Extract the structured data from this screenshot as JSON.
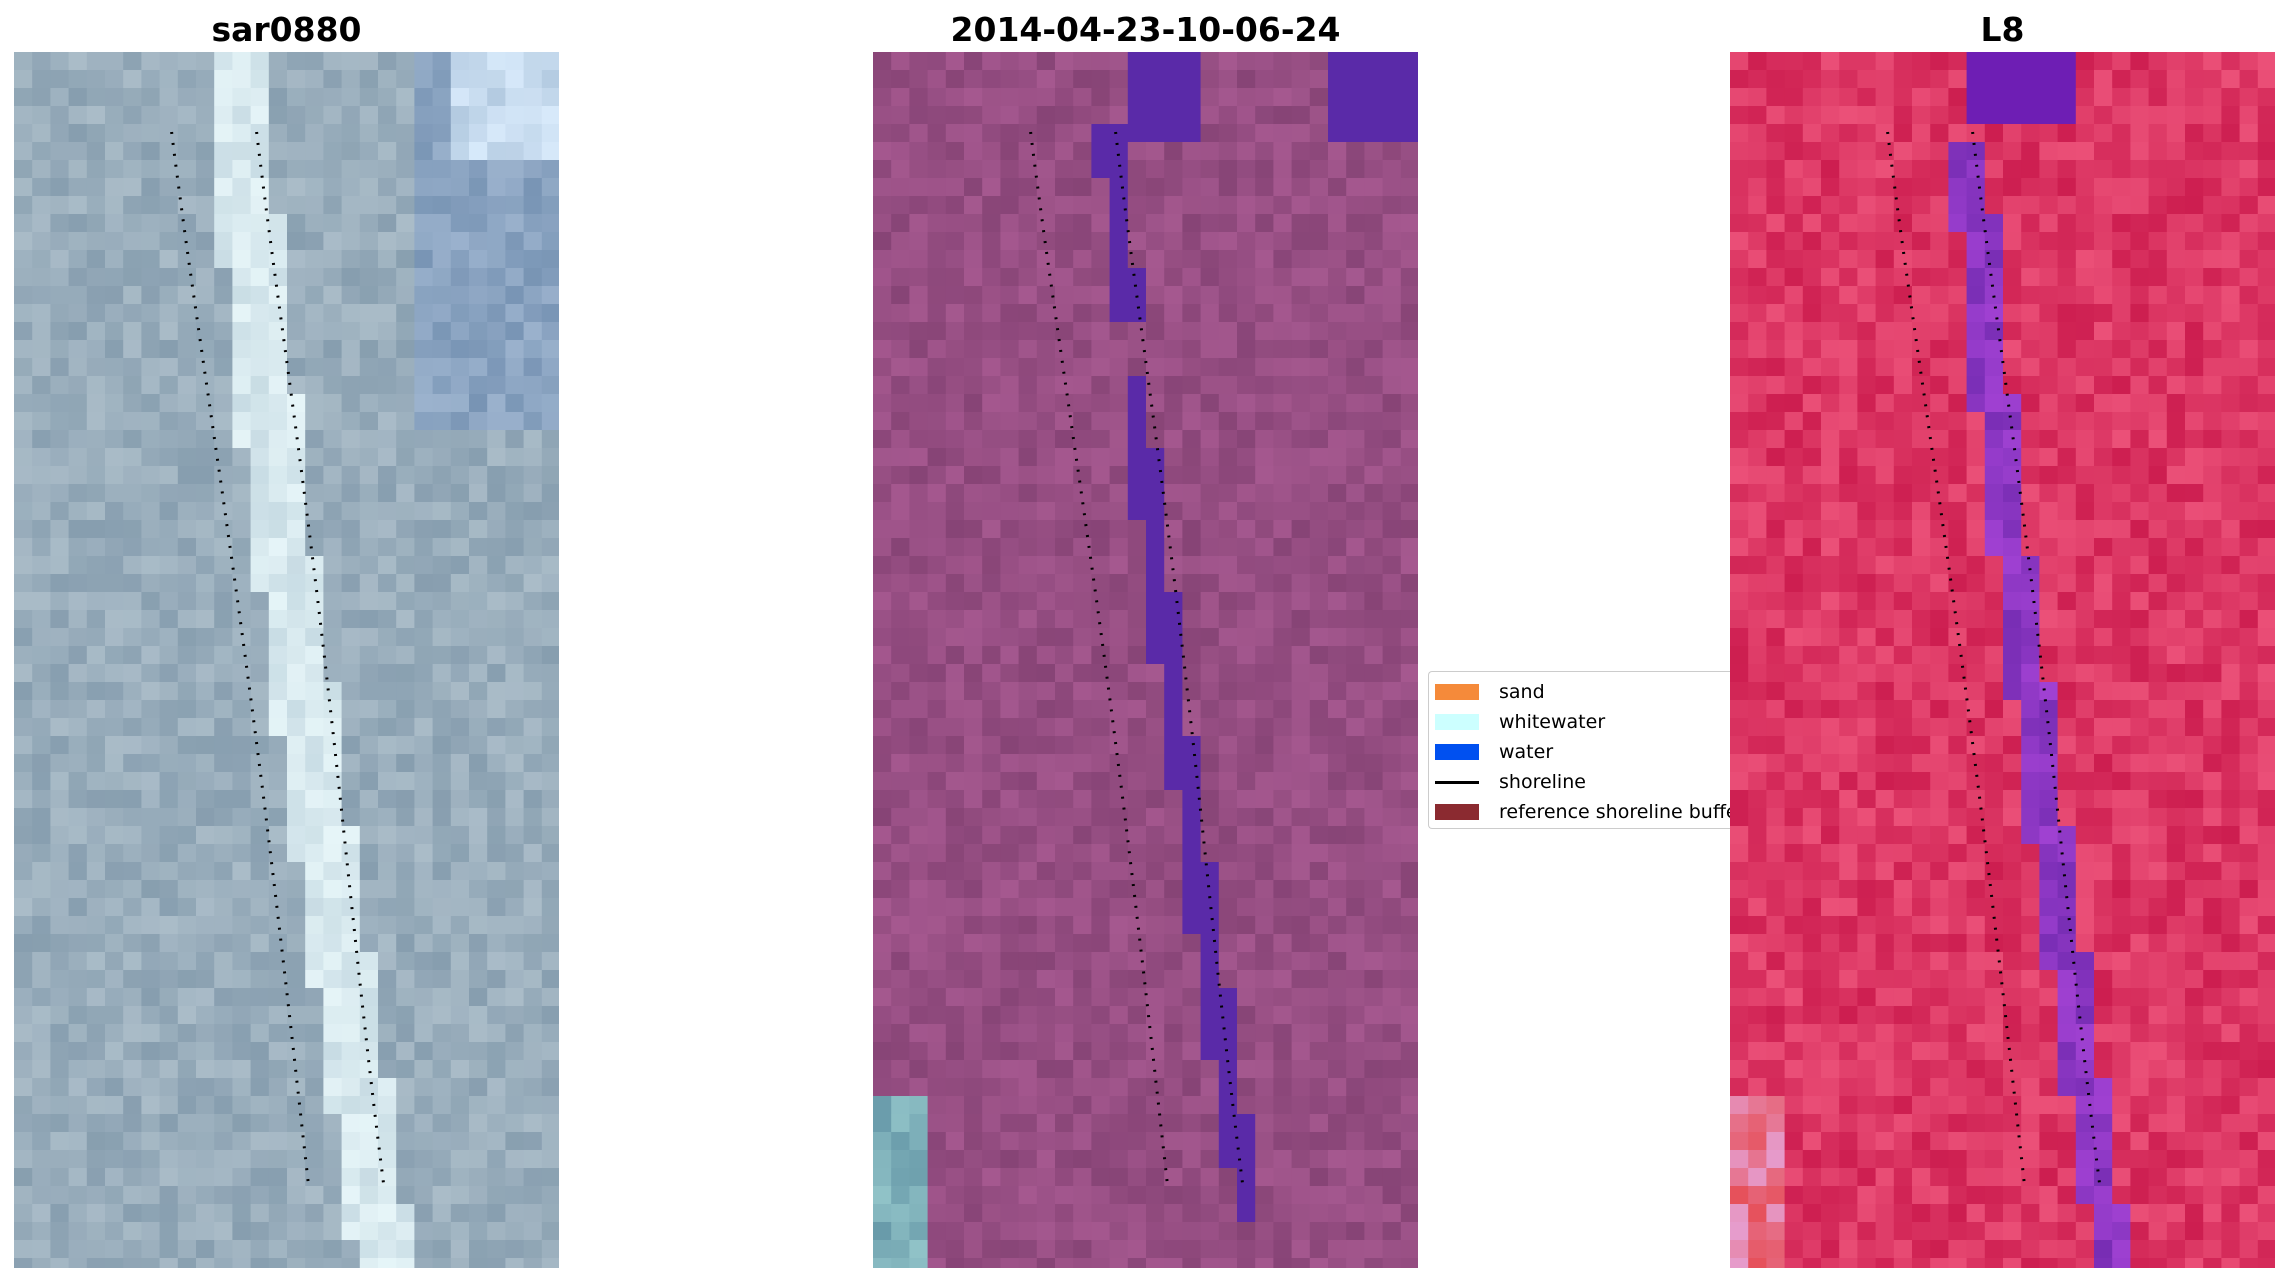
{
  "panels": [
    {
      "title": "sar0880"
    },
    {
      "title": "2014-04-23-10-06-24"
    },
    {
      "title": "L8"
    }
  ],
  "legend": {
    "items": [
      {
        "label": "sand",
        "color": "#f58a3a"
      },
      {
        "label": "whitewater",
        "color": "#ccffff"
      },
      {
        "label": "water",
        "color": "#0050f0"
      },
      {
        "label": "shoreline",
        "color": "#000000"
      },
      {
        "label": "reference shoreline buffer",
        "color": "#8b2a30"
      }
    ]
  },
  "colors": {
    "rgb_land": "#8ea2b4",
    "rgb_channel": "#cfe3e8",
    "classified_land": "#8a4a7a",
    "classified_water": "#5a2aa8",
    "false_color_land": "#d2245a",
    "false_color_water": "#7a2ab0"
  }
}
